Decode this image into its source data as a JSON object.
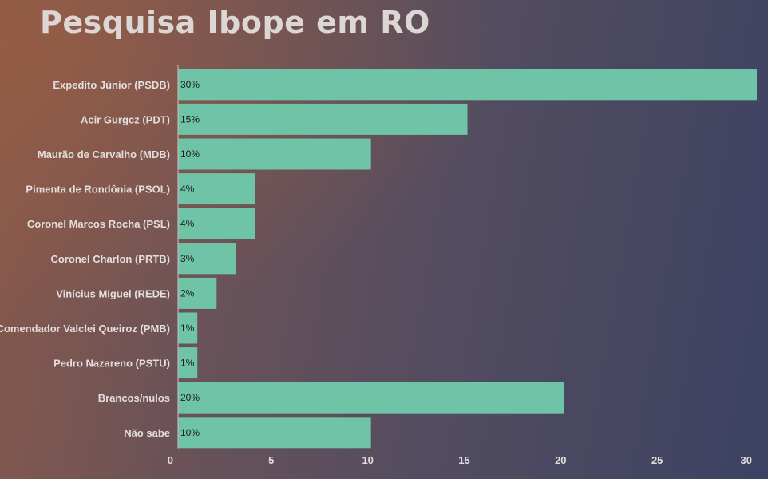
{
  "page": {
    "title": "Pesquisa Ibope em RO"
  },
  "colors": {
    "bar": "#6fc3a6",
    "axis": "#c9c2c2"
  },
  "chart_data": {
    "type": "bar",
    "orientation": "horizontal",
    "title": "Pesquisa Ibope em RO",
    "categories": [
      "Expedito Júnior (PSDB)",
      "Acir Gurgcz (PDT)",
      "Maurão de Carvalho (MDB)",
      "Pimenta de Rondônia (PSOL)",
      "Coronel Marcos Rocha (PSL)",
      "Coronel Charlon (PRTB)",
      "Vinícius Miguel (REDE)",
      "Comendador Valclei Queiroz (PMB)",
      "Pedro Nazareno (PSTU)",
      "Brancos/nulos",
      "Não sabe"
    ],
    "values": [
      30,
      15,
      10,
      4,
      4,
      3,
      2,
      1,
      1,
      20,
      10
    ],
    "data_labels": [
      "30%",
      "15%",
      "10%",
      "4%",
      "4%",
      "3%",
      "2%",
      "1%",
      "1%",
      "20%",
      "10%"
    ],
    "xlim": [
      0,
      30
    ],
    "x_ticks": [
      0,
      5,
      10,
      15,
      20,
      25,
      30
    ],
    "xlabel": "",
    "ylabel": "",
    "grid": false,
    "legend": "none"
  }
}
